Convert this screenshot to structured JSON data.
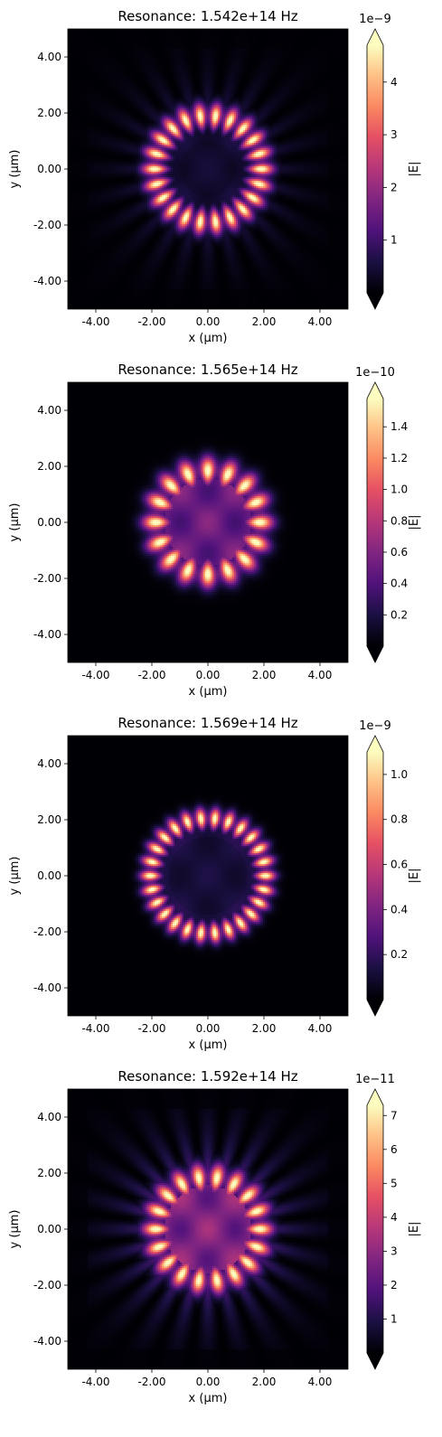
{
  "colormap": "magma",
  "panels": [
    {
      "title": "Resonance: 1.542e+14 Hz",
      "xlabel": "x (µm)",
      "ylabel": "y (µm)",
      "xticks": [
        "-4.00",
        "-2.00",
        "0.00",
        "2.00",
        "4.00"
      ],
      "yticks": [
        "4.00",
        "2.00",
        "0.00",
        "-2.00",
        "-4.00"
      ],
      "colorbar": {
        "label": "|E|",
        "exponent_label": "1e−9",
        "ticks": [
          "1",
          "2",
          "3",
          "4"
        ]
      }
    },
    {
      "title": "Resonance: 1.565e+14 Hz",
      "xlabel": "x (µm)",
      "ylabel": "y (µm)",
      "xticks": [
        "-4.00",
        "-2.00",
        "0.00",
        "2.00",
        "4.00"
      ],
      "yticks": [
        "4.00",
        "2.00",
        "0.00",
        "-2.00",
        "-4.00"
      ],
      "colorbar": {
        "label": "|E|",
        "exponent_label": "1e−10",
        "ticks": [
          "0.2",
          "0.4",
          "0.6",
          "0.8",
          "1.0",
          "1.2",
          "1.4"
        ]
      }
    },
    {
      "title": "Resonance: 1.569e+14 Hz",
      "xlabel": "x (µm)",
      "ylabel": "y (µm)",
      "xticks": [
        "-4.00",
        "-2.00",
        "0.00",
        "2.00",
        "4.00"
      ],
      "yticks": [
        "4.00",
        "2.00",
        "0.00",
        "-2.00",
        "-4.00"
      ],
      "colorbar": {
        "label": "|E|",
        "exponent_label": "1e−9",
        "ticks": [
          "0.2",
          "0.4",
          "0.6",
          "0.8",
          "1.0"
        ]
      }
    },
    {
      "title": "Resonance: 1.592e+14 Hz",
      "xlabel": "x (µm)",
      "ylabel": "y (µm)",
      "xticks": [
        "-4.00",
        "-2.00",
        "0.00",
        "2.00",
        "4.00"
      ],
      "yticks": [
        "4.00",
        "2.00",
        "0.00",
        "-2.00",
        "-4.00"
      ],
      "colorbar": {
        "label": "|E|",
        "exponent_label": "1e−11",
        "ticks": [
          "1",
          "2",
          "3",
          "4",
          "5",
          "6",
          "7"
        ]
      }
    }
  ],
  "chart_data": [
    {
      "type": "heatmap",
      "title": "Resonance: 1.542e+14 Hz",
      "xlabel": "x (µm)",
      "ylabel": "y (µm)",
      "xlim": [
        -5,
        5
      ],
      "ylim": [
        -5,
        5
      ],
      "colorbar": {
        "label": "|E|",
        "scale": 1e-09,
        "range": [
          0,
          4.7
        ],
        "ticks": [
          1,
          2,
          3,
          4
        ]
      },
      "field": {
        "ring_radius": 1.9,
        "ring_width": 0.55,
        "lobes": 22,
        "center_dark_radius": 1.0,
        "center_level": 0.12,
        "rays": 24,
        "ray_level": 0.14,
        "box_halfwidth": 4.3
      }
    },
    {
      "type": "heatmap",
      "title": "Resonance: 1.565e+14 Hz",
      "xlabel": "x (µm)",
      "ylabel": "y (µm)",
      "xlim": [
        -5,
        5
      ],
      "ylim": [
        -5,
        5
      ],
      "colorbar": {
        "label": "|E|",
        "scale": 1e-10,
        "range": [
          0,
          1.58
        ],
        "ticks": [
          0.2,
          0.4,
          0.6,
          0.8,
          1.0,
          1.2,
          1.4
        ]
      },
      "field": {
        "ring_radius": 1.85,
        "ring_width": 0.6,
        "lobes": 16,
        "center_dark_radius": 0.0,
        "center_level": 0.38,
        "rays": 0,
        "ray_level": 0.05,
        "box_halfwidth": 4.3
      }
    },
    {
      "type": "heatmap",
      "title": "Resonance: 1.569e+14 Hz",
      "xlabel": "x (µm)",
      "ylabel": "y (µm)",
      "xlim": [
        -5,
        5
      ],
      "ylim": [
        -5,
        5
      ],
      "colorbar": {
        "label": "|E|",
        "scale": 1e-09,
        "range": [
          0,
          1.1
        ],
        "ticks": [
          0.2,
          0.4,
          0.6,
          0.8,
          1.0
        ]
      },
      "field": {
        "ring_radius": 2.05,
        "ring_width": 0.45,
        "lobes": 26,
        "center_dark_radius": 1.4,
        "center_level": 0.15,
        "rays": 0,
        "ray_level": 0.0,
        "box_halfwidth": 4.3
      }
    },
    {
      "type": "heatmap",
      "title": "Resonance: 1.592e+14 Hz",
      "xlabel": "x (µm)",
      "ylabel": "y (µm)",
      "xlim": [
        -5,
        5
      ],
      "ylim": [
        -5,
        5
      ],
      "colorbar": {
        "label": "|E|",
        "scale": 1e-11,
        "range": [
          0,
          7.3
        ],
        "ticks": [
          1,
          2,
          3,
          4,
          5,
          6,
          7
        ]
      },
      "field": {
        "ring_radius": 1.85,
        "ring_width": 0.6,
        "lobes": 18,
        "center_dark_radius": 0.0,
        "center_level": 0.45,
        "rays": 24,
        "ray_level": 0.28,
        "box_halfwidth": 4.3
      }
    }
  ]
}
